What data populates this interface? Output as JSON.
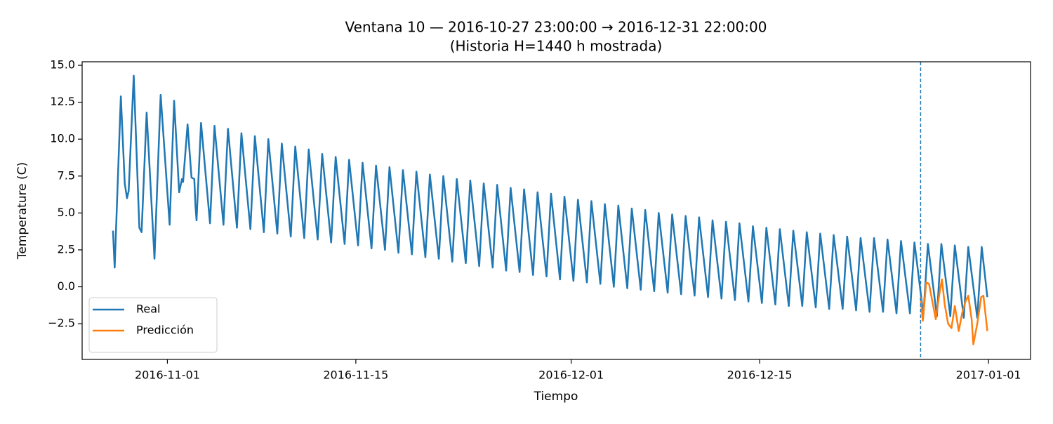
{
  "chart_data": {
    "type": "line",
    "title": "Ventana 10 — 2016-10-27 23:00:00 → 2016-12-31 22:00:00",
    "subtitle": "(Historia H=1440 h mostrada)",
    "xlabel": "Tiempo",
    "ylabel": "Temperature (C)",
    "xlim": [
      "2016-10-25 16:00",
      "2017-01-04 03:00"
    ],
    "xticks": [
      "2016-11-01",
      "2016-11-15",
      "2016-12-01",
      "2016-12-15",
      "2017-01-01"
    ],
    "ylim": [
      -4.92,
      15.24
    ],
    "yticks": [
      {
        "value": -2.5,
        "label": "−2.5"
      },
      {
        "value": 0,
        "label": "0.0"
      },
      {
        "value": 2.5,
        "label": "2.5"
      },
      {
        "value": 5,
        "label": "5.0"
      },
      {
        "value": 7.5,
        "label": "7.5"
      },
      {
        "value": 10,
        "label": "10.0"
      },
      {
        "value": 12.5,
        "label": "12.5"
      },
      {
        "value": 15,
        "label": "15.0"
      }
    ],
    "grid": false,
    "legend": "lower left",
    "vline": {
      "x": "2016-12-26 23:00",
      "color": "#1f77b4",
      "style": "dashed"
    },
    "series": [
      {
        "name": "Real",
        "color": "#1f77b4",
        "x": [
          "2016-10-27 23:00",
          "2016-10-28 02:00",
          "2016-10-28 13:00",
          "2016-10-28 20:00",
          "2016-10-29 00:00",
          "2016-10-29 03:00",
          "2016-10-29 12:00",
          "2016-10-29 22:00",
          "2016-10-30 02:00",
          "2016-10-30 11:00",
          "2016-10-31 01:00",
          "2016-10-31 12:00",
          "2016-11-01 04:00",
          "2016-11-01 12:00",
          "2016-11-01 21:00",
          "2016-11-02 02:00",
          "2016-11-02 04:00",
          "2016-11-02 12:00",
          "2016-11-02 19:00",
          "2016-11-03 00:00",
          "2016-11-03 02:00",
          "2016-11-03 04:00",
          "2016-11-03 12:00",
          "2016-11-04 04:00",
          "2016-11-04 12:00",
          "2016-11-05 04:00",
          "2016-11-05 12:00",
          "2016-11-06 04:00",
          "2016-11-06 12:00",
          "2016-11-07 04:00",
          "2016-11-07 12:00",
          "2016-11-08 04:00",
          "2016-11-08 12:00",
          "2016-11-09 04:00",
          "2016-11-09 12:00",
          "2016-11-10 04:00",
          "2016-11-10 12:00",
          "2016-11-11 04:00",
          "2016-11-11 12:00",
          "2016-11-12 04:00",
          "2016-11-12 12:00",
          "2016-11-13 04:00",
          "2016-11-13 12:00",
          "2016-11-14 04:00",
          "2016-11-14 12:00",
          "2016-11-15 04:00",
          "2016-11-15 12:00",
          "2016-11-16 04:00",
          "2016-11-16 12:00",
          "2016-11-17 04:00",
          "2016-11-17 12:00",
          "2016-11-18 04:00",
          "2016-11-18 12:00",
          "2016-11-19 04:00",
          "2016-11-19 12:00",
          "2016-11-20 04:00",
          "2016-11-20 12:00",
          "2016-11-21 04:00",
          "2016-11-21 12:00",
          "2016-11-22 04:00",
          "2016-11-22 12:00",
          "2016-11-23 04:00",
          "2016-11-23 12:00",
          "2016-11-24 04:00",
          "2016-11-24 12:00",
          "2016-11-25 04:00",
          "2016-11-25 12:00",
          "2016-11-26 04:00",
          "2016-11-26 12:00",
          "2016-11-27 04:00",
          "2016-11-27 12:00",
          "2016-11-28 04:00",
          "2016-11-28 12:00",
          "2016-11-29 04:00",
          "2016-11-29 12:00",
          "2016-11-30 04:00",
          "2016-11-30 12:00",
          "2016-12-01 04:00",
          "2016-12-01 12:00",
          "2016-12-02 04:00",
          "2016-12-02 12:00",
          "2016-12-03 04:00",
          "2016-12-03 12:00",
          "2016-12-04 04:00",
          "2016-12-04 12:00",
          "2016-12-05 04:00",
          "2016-12-05 12:00",
          "2016-12-06 04:00",
          "2016-12-06 12:00",
          "2016-12-07 04:00",
          "2016-12-07 12:00",
          "2016-12-08 04:00",
          "2016-12-08 12:00",
          "2016-12-09 04:00",
          "2016-12-09 12:00",
          "2016-12-10 04:00",
          "2016-12-10 12:00",
          "2016-12-11 04:00",
          "2016-12-11 12:00",
          "2016-12-12 04:00",
          "2016-12-12 12:00",
          "2016-12-13 04:00",
          "2016-12-13 12:00",
          "2016-12-14 04:00",
          "2016-12-14 12:00",
          "2016-12-15 04:00",
          "2016-12-15 12:00",
          "2016-12-16 04:00",
          "2016-12-16 12:00",
          "2016-12-17 04:00",
          "2016-12-17 12:00",
          "2016-12-18 04:00",
          "2016-12-18 12:00",
          "2016-12-19 04:00",
          "2016-12-19 12:00",
          "2016-12-20 04:00",
          "2016-12-20 12:00",
          "2016-12-21 04:00",
          "2016-12-21 12:00",
          "2016-12-22 04:00",
          "2016-12-22 12:00",
          "2016-12-23 04:00",
          "2016-12-23 12:00",
          "2016-12-24 04:00",
          "2016-12-24 12:00",
          "2016-12-25 04:00",
          "2016-12-25 12:00",
          "2016-12-26 04:00",
          "2016-12-26 12:00",
          "2016-12-27 04:00",
          "2016-12-27 12:00",
          "2016-12-28 04:00",
          "2016-12-28 12:00",
          "2016-12-29 04:00",
          "2016-12-29 12:00",
          "2016-12-30 04:00",
          "2016-12-30 12:00",
          "2016-12-31 04:00",
          "2016-12-31 12:00",
          "2016-12-31 22:00"
        ],
        "values": [
          3.8,
          1.3,
          12.9,
          7.0,
          6.0,
          6.5,
          14.3,
          4.0,
          3.7,
          11.8,
          1.9,
          13.0,
          4.2,
          12.6,
          6.4,
          7.3,
          7.1,
          11.0,
          7.4,
          7.3,
          5.5,
          4.5,
          11.1,
          4.3,
          10.9,
          4.2,
          10.7,
          4.0,
          10.4,
          3.9,
          10.2,
          3.7,
          10.0,
          3.6,
          9.7,
          3.4,
          9.5,
          3.3,
          9.3,
          3.2,
          9.0,
          3.0,
          8.8,
          2.9,
          8.6,
          2.8,
          8.4,
          2.6,
          8.2,
          2.5,
          8.1,
          2.3,
          7.9,
          2.2,
          7.8,
          2.0,
          7.6,
          1.9,
          7.5,
          1.7,
          7.3,
          1.6,
          7.2,
          1.4,
          7.0,
          1.3,
          6.9,
          1.1,
          6.7,
          1.0,
          6.6,
          0.8,
          6.4,
          0.7,
          6.3,
          0.5,
          6.1,
          0.4,
          5.9,
          0.3,
          5.8,
          0.2,
          5.6,
          0.0,
          5.5,
          -0.1,
          5.3,
          -0.2,
          5.2,
          -0.3,
          5.0,
          -0.4,
          4.9,
          -0.5,
          4.8,
          -0.6,
          4.7,
          -0.7,
          4.5,
          -0.8,
          4.4,
          -0.9,
          4.3,
          -1.0,
          4.1,
          -1.1,
          4.0,
          -1.2,
          3.9,
          -1.3,
          3.8,
          -1.3,
          3.7,
          -1.4,
          3.6,
          -1.5,
          3.5,
          -1.5,
          3.4,
          -1.6,
          3.3,
          -1.7,
          3.3,
          -1.7,
          3.2,
          -1.8,
          3.1,
          -1.8,
          3.0,
          -1.9,
          2.9,
          -2.0,
          2.9,
          -2.0,
          2.8,
          -2.1,
          2.7,
          -2.1,
          2.7,
          -0.7
        ]
      },
      {
        "name": "Predicción",
        "color": "#ff7f0e",
        "x": [
          "2016-12-26 23:00",
          "2016-12-27 03:00",
          "2016-12-27 09:00",
          "2016-12-27 14:00",
          "2016-12-27 20:00",
          "2016-12-28 02:00",
          "2016-12-28 08:00",
          "2016-12-28 13:00",
          "2016-12-28 18:00",
          "2016-12-29 00:00",
          "2016-12-29 06:00",
          "2016-12-29 12:00",
          "2016-12-29 19:00",
          "2016-12-30 01:00",
          "2016-12-30 07:00",
          "2016-12-30 12:00",
          "2016-12-30 18:00",
          "2016-12-30 21:00",
          "2016-12-31 04:00",
          "2016-12-31 11:00",
          "2016-12-31 15:00",
          "2016-12-31 20:00",
          "2016-12-31 22:00"
        ],
        "values": [
          -0.7,
          -2.3,
          0.3,
          0.2,
          -1.0,
          -2.2,
          -0.6,
          0.5,
          -1.2,
          -2.5,
          -2.8,
          -1.3,
          -3.0,
          -1.8,
          -1.0,
          -0.6,
          -2.2,
          -3.9,
          -2.5,
          -0.7,
          -0.6,
          -2.3,
          -3.0
        ]
      }
    ]
  }
}
